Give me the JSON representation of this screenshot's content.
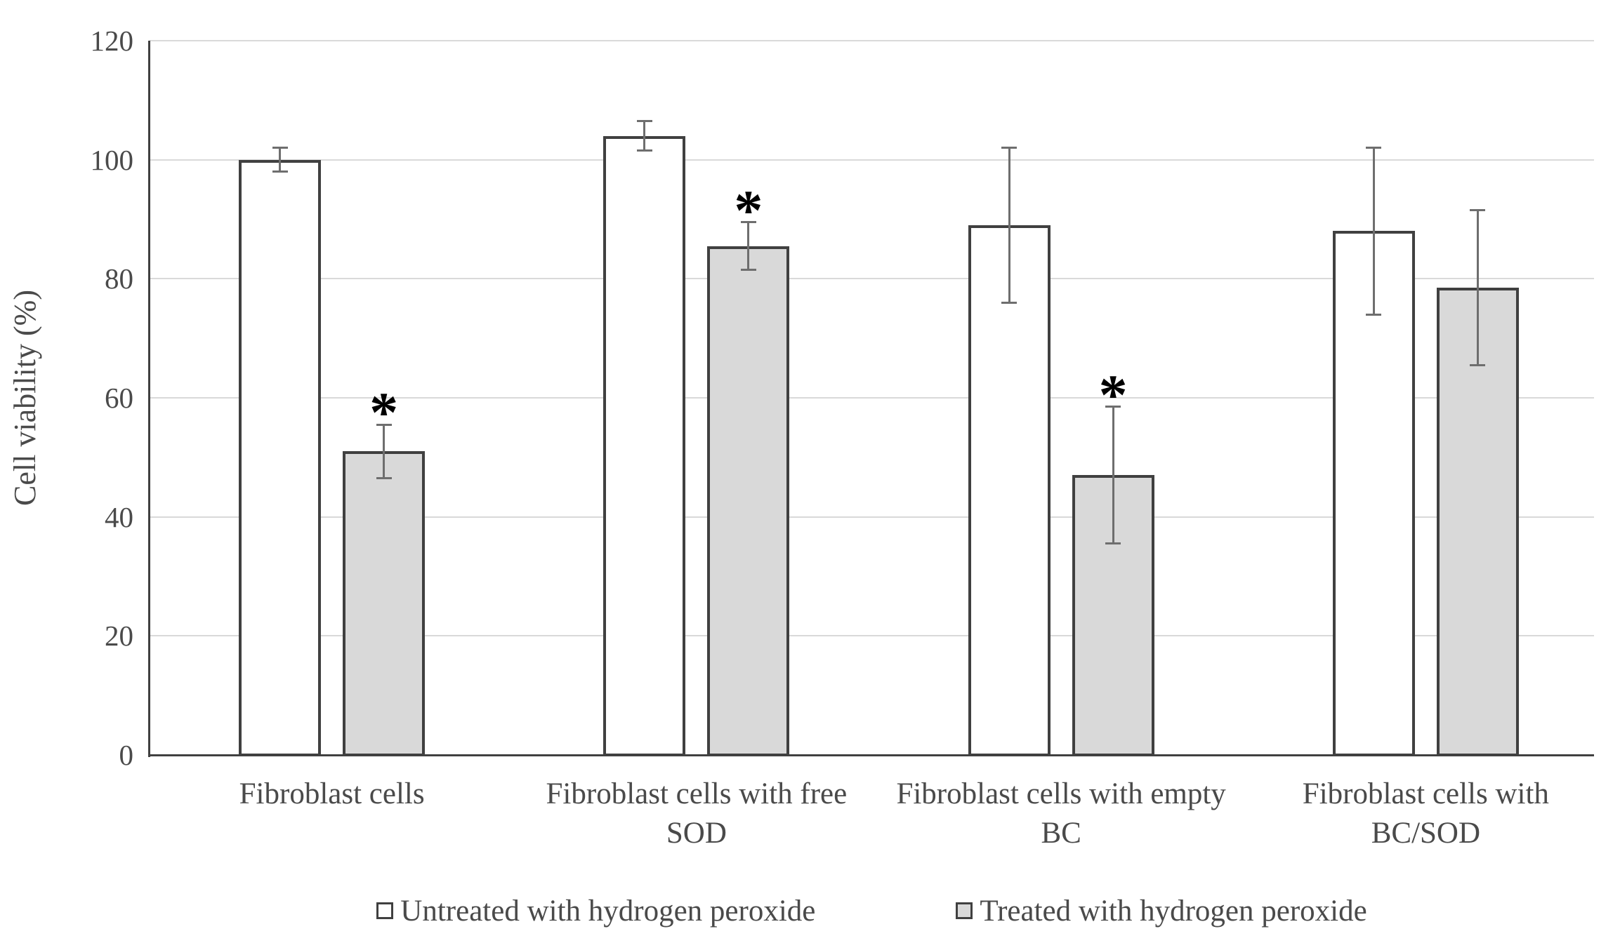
{
  "figure": {
    "background": "#ffffff",
    "text_color": "#4a4a4a",
    "axis_color": "#404040",
    "gridline_color": "#d9d9d9",
    "error_bar_color": "#6e6e6e",
    "significance_marker": "*"
  },
  "chart_data": {
    "type": "bar",
    "title": "",
    "xlabel": "",
    "ylabel": "Cell viability (%)",
    "ylim": [
      0,
      120
    ],
    "yticks": [
      0,
      20,
      40,
      60,
      80,
      100,
      120
    ],
    "grid": true,
    "legend_position": "bottom",
    "categories": [
      "Fibroblast cells",
      "Fibroblast cells with free SOD",
      "Fibroblast cells with empty BC",
      "Fibroblast cells with BC/SOD"
    ],
    "category_label_lines": [
      [
        "Fibroblast cells"
      ],
      [
        "Fibroblast cells with free",
        "SOD"
      ],
      [
        "Fibroblast cells with empty",
        "BC"
      ],
      [
        "Fibroblast cells with",
        "BC/SOD"
      ]
    ],
    "series": [
      {
        "name": "Untreated with hydrogen peroxide",
        "fill": "#ffffff",
        "border": "#404040",
        "values": [
          100,
          104,
          89,
          88
        ],
        "errors": [
          2,
          2.5,
          13,
          14
        ],
        "significant": [
          false,
          false,
          false,
          false
        ]
      },
      {
        "name": "Treated with hydrogen peroxide",
        "fill": "#d9d9d9",
        "border": "#404040",
        "values": [
          51,
          85.5,
          47,
          78.5
        ],
        "errors": [
          4.5,
          4,
          11.5,
          13
        ],
        "significant": [
          true,
          true,
          true,
          false
        ]
      }
    ]
  }
}
